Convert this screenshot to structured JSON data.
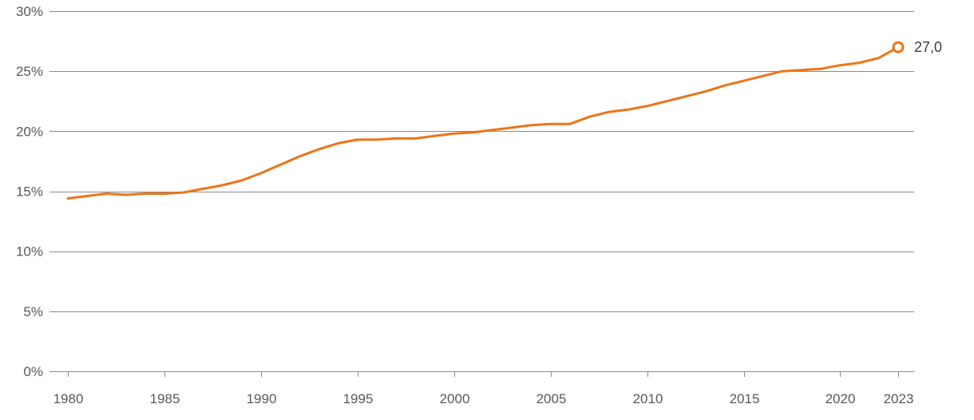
{
  "chart_data": {
    "type": "line",
    "title": "",
    "xlabel": "",
    "ylabel": "",
    "ylim": [
      0,
      30
    ],
    "xlim": [
      1980,
      2023
    ],
    "grid": "horizontal",
    "x": [
      1980,
      1981,
      1982,
      1983,
      1984,
      1985,
      1986,
      1987,
      1988,
      1989,
      1990,
      1991,
      1992,
      1993,
      1994,
      1995,
      1996,
      1997,
      1998,
      1999,
      2000,
      2001,
      2002,
      2003,
      2004,
      2005,
      2006,
      2007,
      2008,
      2009,
      2010,
      2011,
      2012,
      2013,
      2014,
      2015,
      2016,
      2017,
      2018,
      2019,
      2020,
      2021,
      2022,
      2023
    ],
    "values": [
      14.4,
      14.6,
      14.8,
      14.7,
      14.8,
      14.8,
      14.9,
      15.2,
      15.5,
      15.9,
      16.5,
      17.2,
      17.9,
      18.5,
      19.0,
      19.3,
      19.3,
      19.4,
      19.4,
      19.6,
      19.8,
      19.9,
      20.1,
      20.3,
      20.5,
      20.6,
      20.6,
      21.2,
      21.6,
      21.8,
      22.1,
      22.5,
      22.9,
      23.3,
      23.8,
      24.2,
      24.6,
      25.0,
      25.1,
      25.2,
      25.5,
      25.7,
      26.1,
      27.0
    ],
    "yticks": [
      0,
      5,
      10,
      15,
      20,
      25,
      30
    ],
    "ytick_labels": [
      "0%",
      "5%",
      "10%",
      "15%",
      "20%",
      "25%",
      "30%"
    ],
    "xticks": [
      1980,
      1985,
      1990,
      1995,
      2000,
      2005,
      2010,
      2015,
      2020,
      2023
    ],
    "xtick_labels": [
      "1980",
      "1985",
      "1990",
      "1995",
      "2000",
      "2005",
      "2010",
      "2015",
      "2020",
      "2023"
    ],
    "end_label": "27,0",
    "legend": [],
    "colors": {
      "line": "#ed7417",
      "marker_fill": "#ffffff",
      "grid": "#8c8c8c",
      "tick_text": "#595959",
      "end_label_text": "#3d3d3d"
    }
  }
}
